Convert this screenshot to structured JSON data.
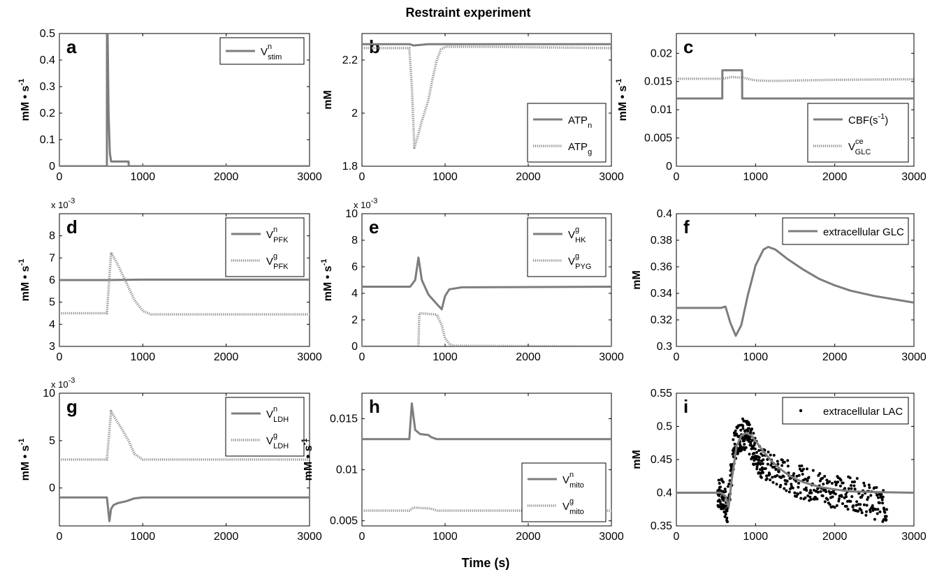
{
  "figure": {
    "title": "Restraint experiment",
    "xlabel": "Time (s)"
  },
  "chart_data": [
    {
      "id": "a",
      "type": "line",
      "letter": "a",
      "ylabel": "mM • s-1",
      "xlim": [
        0,
        3000
      ],
      "ylim": [
        0,
        0.5
      ],
      "xticks": [
        0,
        1000,
        2000,
        3000
      ],
      "yticks": [
        0,
        0.1,
        0.2,
        0.3,
        0.4,
        0.5
      ],
      "ytick_labels": [
        "0",
        "0.1",
        "0.2",
        "0.3",
        "0.4",
        "0.5"
      ],
      "legend_pos": "top-right",
      "series": [
        {
          "name": "V",
          "sup": "n",
          "sub": "stim",
          "style": "solid",
          "x": [
            0,
            570,
            571,
            578,
            590,
            605,
            620,
            700,
            830,
            831,
            3000
          ],
          "y": [
            0,
            0,
            0.5,
            0.5,
            0.2,
            0.05,
            0.018,
            0.018,
            0.018,
            0,
            0
          ]
        }
      ]
    },
    {
      "id": "b",
      "type": "line",
      "letter": "b",
      "ylabel": "mM",
      "xlim": [
        0,
        3000
      ],
      "ylim": [
        1.8,
        2.3
      ],
      "xticks": [
        0,
        1000,
        2000,
        3000
      ],
      "yticks": [
        1.8,
        2.0,
        2.2
      ],
      "ytick_labels": [
        "1.8",
        "2",
        "2.2"
      ],
      "legend_pos": "bottom-right",
      "series": [
        {
          "name": "ATP",
          "sub": "n",
          "style": "solid",
          "x": [
            0,
            570,
            620,
            800,
            3000
          ],
          "y": [
            2.26,
            2.26,
            2.255,
            2.26,
            2.26
          ]
        },
        {
          "name": "ATP",
          "sub": "g",
          "style": "dotted",
          "x": [
            0,
            570,
            600,
            630,
            660,
            720,
            800,
            850,
            900,
            950,
            1000,
            1100,
            1500,
            3000
          ],
          "y": [
            2.245,
            2.245,
            2.1,
            1.87,
            1.9,
            1.97,
            2.05,
            2.13,
            2.2,
            2.24,
            2.25,
            2.25,
            2.25,
            2.245
          ]
        }
      ]
    },
    {
      "id": "c",
      "type": "line",
      "letter": "c",
      "ylabel": "mM • s-1",
      "xlim": [
        0,
        3000
      ],
      "ylim": [
        0,
        0.0235
      ],
      "xticks": [
        0,
        1000,
        2000,
        3000
      ],
      "yticks": [
        0,
        0.005,
        0.01,
        0.015,
        0.02
      ],
      "ytick_labels": [
        "0",
        "0.005",
        "0.01",
        "0.015",
        "0.02"
      ],
      "legend_pos": "bottom-right",
      "series": [
        {
          "name": "CBF(s-1)",
          "style": "solid",
          "x": [
            0,
            580,
            581,
            830,
            831,
            3000
          ],
          "y": [
            0.012,
            0.012,
            0.017,
            0.017,
            0.012,
            0.012
          ]
        },
        {
          "name": "V",
          "sup": "ce",
          "sub": "GLC",
          "style": "dotted",
          "x": [
            0,
            580,
            700,
            830,
            1000,
            1200,
            2000,
            3000
          ],
          "y": [
            0.0155,
            0.0155,
            0.0158,
            0.0157,
            0.0152,
            0.0151,
            0.0153,
            0.0154
          ]
        }
      ]
    },
    {
      "id": "d",
      "type": "line",
      "letter": "d",
      "ylabel": "mM • s-1",
      "exponent": "x 10-3",
      "xlim": [
        0,
        3000
      ],
      "ylim": [
        3,
        9
      ],
      "xticks": [
        0,
        1000,
        2000,
        3000
      ],
      "yticks": [
        3,
        4,
        5,
        6,
        7,
        8
      ],
      "ytick_labels": [
        "3",
        "4",
        "5",
        "6",
        "7",
        "8"
      ],
      "legend_pos": "top-right",
      "series": [
        {
          "name": "V",
          "sup": "n",
          "sub": "PFK",
          "style": "solid",
          "x": [
            0,
            570,
            1000,
            3000
          ],
          "y": [
            6.0,
            6.0,
            6.02,
            6.02
          ]
        },
        {
          "name": "V",
          "sup": "g",
          "sub": "PFK",
          "style": "dotted",
          "x": [
            0,
            570,
            620,
            700,
            800,
            900,
            1000,
            1100,
            3000
          ],
          "y": [
            4.5,
            4.5,
            7.25,
            6.7,
            5.9,
            5.1,
            4.6,
            4.45,
            4.45
          ]
        }
      ]
    },
    {
      "id": "e",
      "type": "line",
      "letter": "e",
      "ylabel": "mM • s-1",
      "exponent": "x 10-3",
      "xlim": [
        0,
        3000
      ],
      "ylim": [
        0,
        10
      ],
      "xticks": [
        0,
        1000,
        2000,
        3000
      ],
      "yticks": [
        0,
        2,
        4,
        6,
        8,
        10
      ],
      "ytick_labels": [
        "0",
        "2",
        "4",
        "6",
        "8",
        "10"
      ],
      "legend_pos": "top-right",
      "series": [
        {
          "name": "V",
          "sup": "g",
          "sub": "HK",
          "style": "solid",
          "x": [
            0,
            580,
            640,
            680,
            720,
            800,
            900,
            960,
            1000,
            1050,
            1200,
            3000
          ],
          "y": [
            4.5,
            4.5,
            5.0,
            6.7,
            5.0,
            3.9,
            3.2,
            2.8,
            3.8,
            4.3,
            4.45,
            4.5
          ]
        },
        {
          "name": "V",
          "sup": "g",
          "sub": "PYG",
          "style": "dotted",
          "x": [
            0,
            680,
            690,
            900,
            960,
            1000,
            1050,
            1100,
            3000
          ],
          "y": [
            0,
            0,
            2.5,
            2.4,
            1.6,
            0.6,
            0.2,
            0.05,
            0
          ]
        }
      ]
    },
    {
      "id": "f",
      "type": "line",
      "letter": "f",
      "ylabel": "mM",
      "xlim": [
        0,
        3000
      ],
      "ylim": [
        0.3,
        0.4
      ],
      "xticks": [
        0,
        1000,
        2000,
        3000
      ],
      "yticks": [
        0.3,
        0.32,
        0.34,
        0.36,
        0.38,
        0.4
      ],
      "ytick_labels": [
        "0.3",
        "0.32",
        "0.34",
        "0.36",
        "0.38",
        "0.4"
      ],
      "legend_pos": "top-right",
      "series": [
        {
          "name": "extracellular GLC",
          "style": "solid",
          "x": [
            0,
            560,
            620,
            680,
            750,
            820,
            900,
            1000,
            1100,
            1160,
            1250,
            1400,
            1600,
            1800,
            2000,
            2200,
            2500,
            2800,
            3000
          ],
          "y": [
            0.329,
            0.329,
            0.33,
            0.318,
            0.308,
            0.316,
            0.338,
            0.361,
            0.373,
            0.375,
            0.373,
            0.366,
            0.358,
            0.351,
            0.346,
            0.342,
            0.338,
            0.335,
            0.333
          ]
        }
      ]
    },
    {
      "id": "g",
      "type": "line",
      "letter": "g",
      "ylabel": "mM • s-1",
      "exponent": "x 10-3",
      "xlim": [
        0,
        3000
      ],
      "ylim": [
        -4,
        10
      ],
      "xticks": [
        0,
        1000,
        2000,
        3000
      ],
      "yticks": [
        0,
        5,
        10
      ],
      "ytick_labels": [
        "0",
        "5",
        "10"
      ],
      "legend_pos": "top-right",
      "series": [
        {
          "name": "V",
          "sup": "n",
          "sub": "LDH",
          "style": "solid",
          "x": [
            0,
            570,
            600,
            620,
            650,
            700,
            800,
            900,
            1000,
            3000
          ],
          "y": [
            -1.0,
            -1.0,
            -3.5,
            -2.2,
            -1.8,
            -1.6,
            -1.4,
            -1.1,
            -1.0,
            -1.0
          ]
        },
        {
          "name": "V",
          "sup": "g",
          "sub": "LDH",
          "style": "dotted",
          "x": [
            0,
            570,
            620,
            680,
            750,
            830,
            900,
            1000,
            3000
          ],
          "y": [
            3.0,
            3.0,
            8.1,
            7.2,
            6.2,
            5.0,
            3.6,
            3.0,
            3.0
          ]
        }
      ]
    },
    {
      "id": "h",
      "type": "line",
      "letter": "h",
      "ylabel": "mM • s-1",
      "xlim": [
        0,
        3000
      ],
      "ylim": [
        0.0045,
        0.0175
      ],
      "xticks": [
        0,
        1000,
        2000,
        3000
      ],
      "yticks": [
        0.005,
        0.01,
        0.015
      ],
      "ytick_labels": [
        "0.005",
        "0.01",
        "0.015"
      ],
      "legend_pos": "bottom-right",
      "series": [
        {
          "name": "V",
          "sup": "n",
          "sub": "mito",
          "style": "solid",
          "x": [
            0,
            570,
            600,
            640,
            700,
            800,
            830,
            900,
            3000
          ],
          "y": [
            0.013,
            0.013,
            0.0165,
            0.0139,
            0.0135,
            0.0134,
            0.0132,
            0.013,
            0.013
          ]
        },
        {
          "name": "V",
          "sup": "g",
          "sub": "mito",
          "style": "dotted",
          "x": [
            0,
            570,
            620,
            830,
            900,
            1000,
            3000
          ],
          "y": [
            0.006,
            0.006,
            0.0063,
            0.0062,
            0.006,
            0.006,
            0.006
          ]
        }
      ]
    },
    {
      "id": "i",
      "type": "scatter",
      "letter": "i",
      "ylabel": "mM",
      "xlim": [
        0,
        3000
      ],
      "ylim": [
        0.35,
        0.55
      ],
      "xticks": [
        0,
        1000,
        2000,
        3000
      ],
      "yticks": [
        0.35,
        0.4,
        0.45,
        0.5,
        0.55
      ],
      "ytick_labels": [
        "0.35",
        "0.4",
        "0.45",
        "0.5",
        "0.55"
      ],
      "legend_pos": "top-right",
      "series": [
        {
          "name": "extracellular LAC",
          "style": "markers",
          "x": [
            520,
            560,
            600,
            640,
            680,
            720,
            760,
            800,
            840,
            880,
            920,
            960,
            1000,
            1050,
            1100,
            1200,
            1300,
            1400,
            1500,
            1600,
            1700,
            1800,
            1900,
            2000,
            2100,
            2200,
            2300,
            2400,
            2500,
            2600,
            2660
          ],
          "y": [
            0.4,
            0.4,
            0.39,
            0.375,
            0.41,
            0.46,
            0.48,
            0.487,
            0.49,
            0.487,
            0.48,
            0.47,
            0.46,
            0.45,
            0.443,
            0.435,
            0.43,
            0.425,
            0.42,
            0.415,
            0.412,
            0.41,
            0.405,
            0.402,
            0.4,
            0.4,
            0.396,
            0.39,
            0.385,
            0.38,
            0.375
          ]
        },
        {
          "name": "",
          "style": "solid",
          "x": [
            0,
            560,
            620,
            660,
            700,
            760,
            820,
            880,
            950,
            1000,
            1100,
            1200,
            1300,
            1400,
            1500,
            1600,
            1800,
            2000,
            2200,
            2500,
            3000
          ],
          "y": [
            0.4,
            0.4,
            0.395,
            0.378,
            0.42,
            0.47,
            0.486,
            0.49,
            0.486,
            0.478,
            0.462,
            0.448,
            0.437,
            0.428,
            0.421,
            0.416,
            0.409,
            0.405,
            0.402,
            0.401,
            0.4
          ]
        }
      ]
    }
  ]
}
